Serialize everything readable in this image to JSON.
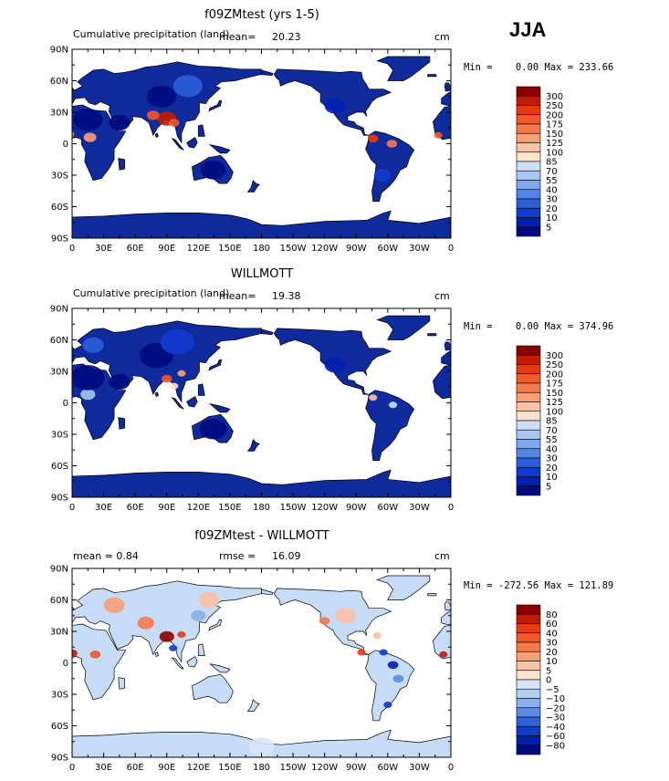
{
  "season": "JJA",
  "panels": [
    {
      "title": "f09ZMtest (yrs 1-5)",
      "subtitle": "Cumulative precipitation (land)",
      "stat_label": "mean=",
      "stat_value": "20.23",
      "units": "cm",
      "minmax": "Min =    0.00 Max = 233.66",
      "legend_labels": [
        "300",
        "250",
        "200",
        "175",
        "150",
        "125",
        "100",
        "85",
        "70",
        "55",
        "40",
        "30",
        "20",
        "10",
        "5"
      ],
      "legend_colors": [
        "#8e0000",
        "#c41a00",
        "#e63a10",
        "#f2582a",
        "#f77a4d",
        "#fa9e78",
        "#fcc2a4",
        "#fde2cd",
        "#cfe0f6",
        "#a9c7f2",
        "#7fa9ed",
        "#5384e6",
        "#2b5edc",
        "#0f3ad0",
        "#0020b0",
        "#000a80"
      ],
      "base_color": "#0f2a9c"
    },
    {
      "title": "WILLMOTT",
      "subtitle": "Cumulative precipitation (land)",
      "stat_label": "mean=",
      "stat_value": "19.38",
      "units": "cm",
      "minmax": "Min =    0.00 Max = 374.96",
      "legend_labels": [
        "300",
        "250",
        "200",
        "175",
        "150",
        "125",
        "100",
        "85",
        "70",
        "55",
        "40",
        "30",
        "20",
        "10",
        "5"
      ],
      "legend_colors": [
        "#8e0000",
        "#c41a00",
        "#e63a10",
        "#f2582a",
        "#f77a4d",
        "#fa9e78",
        "#fcc2a4",
        "#fde2cd",
        "#cfe0f6",
        "#a9c7f2",
        "#7fa9ed",
        "#5384e6",
        "#2b5edc",
        "#0f3ad0",
        "#0020b0",
        "#000a80"
      ],
      "base_color": "#0f2a9c"
    },
    {
      "title": "f09ZMtest - WILLMOTT",
      "subtitle": "mean =    0.84",
      "stat_label": "rmse =",
      "stat_value": "16.09",
      "units": "cm",
      "minmax": "Min = -272.56 Max = 121.89",
      "legend_labels": [
        "80",
        "60",
        "40",
        "30",
        "20",
        "10",
        "5",
        "0",
        "−5",
        "−10",
        "−20",
        "−30",
        "−40",
        "−60",
        "−80"
      ],
      "legend_colors": [
        "#8e0000",
        "#c41a00",
        "#e63a10",
        "#f2582a",
        "#f77a4d",
        "#fa9e78",
        "#fcc2a4",
        "#fde2cd",
        "#d7e6f8",
        "#b3cdf3",
        "#8ab0ee",
        "#5e8ae7",
        "#2f5fdc",
        "#0f3ad0",
        "#0020b0",
        "#000a80"
      ],
      "base_color": "#c7dcf6"
    }
  ],
  "lat_labels": [
    "90N",
    "60N",
    "30N",
    "0",
    "30S",
    "60S",
    "90S"
  ],
  "lon_labels": [
    "0",
    "30E",
    "60E",
    "90E",
    "120E",
    "150E",
    "180",
    "150W",
    "120W",
    "90W",
    "60W",
    "30W",
    "0"
  ]
}
